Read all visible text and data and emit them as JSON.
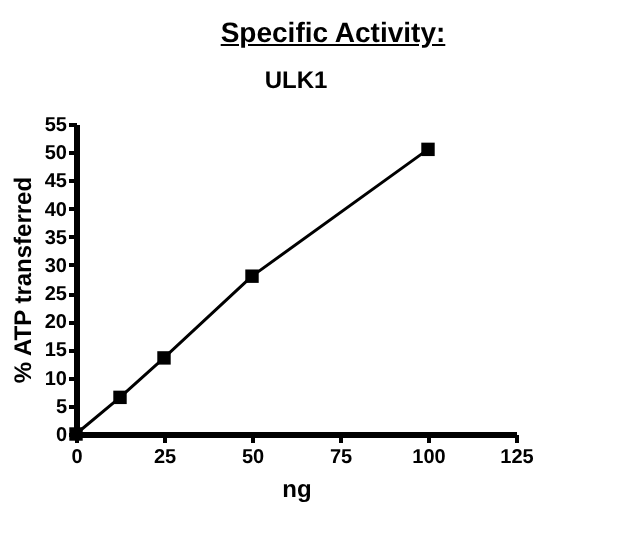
{
  "chart_data": {
    "type": "line",
    "title": "Specific Activity:",
    "subtitle": "ULK1",
    "xlabel": "ng",
    "ylabel": "% ATP transferred",
    "x": [
      0,
      12.5,
      25,
      50,
      100
    ],
    "series": [
      {
        "color": "#000000",
        "values": [
          0,
          6.5,
          13.5,
          28,
          50.5
        ]
      }
    ],
    "xlim": [
      0,
      125
    ],
    "xticks": [
      0,
      25,
      50,
      75,
      100,
      125
    ],
    "ylim": [
      0,
      55
    ],
    "yticks": [
      0,
      5,
      10,
      15,
      20,
      25,
      30,
      35,
      40,
      45,
      50,
      55
    ],
    "grid": false,
    "legend": false,
    "marker": "square",
    "line_style": "solid"
  }
}
